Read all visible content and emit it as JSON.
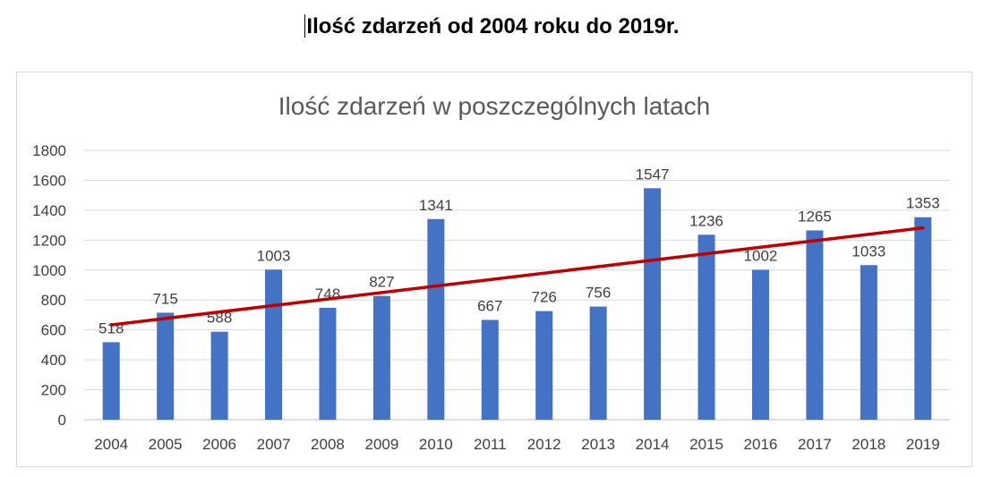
{
  "document": {
    "heading": "Ilość zdarzeń od 2004 roku do 2019r."
  },
  "chart_data": {
    "type": "bar",
    "title": "Ilość zdarzeń w poszczególnych latach",
    "xlabel": "",
    "ylabel": "",
    "categories": [
      "2004",
      "2005",
      "2006",
      "2007",
      "2008",
      "2009",
      "2010",
      "2011",
      "2012",
      "2013",
      "2014",
      "2015",
      "2016",
      "2017",
      "2018",
      "2019"
    ],
    "values": [
      518,
      715,
      588,
      1003,
      748,
      827,
      1341,
      667,
      726,
      756,
      1547,
      1236,
      1002,
      1265,
      1033,
      1353
    ],
    "ylim": [
      0,
      1800
    ],
    "yticks": [
      0,
      200,
      400,
      600,
      800,
      1000,
      1200,
      1400,
      1600,
      1800
    ],
    "grid": true,
    "legend": "none",
    "bar_color": "#4472C4",
    "trendline": {
      "type": "linear",
      "color": "#C00000"
    }
  }
}
